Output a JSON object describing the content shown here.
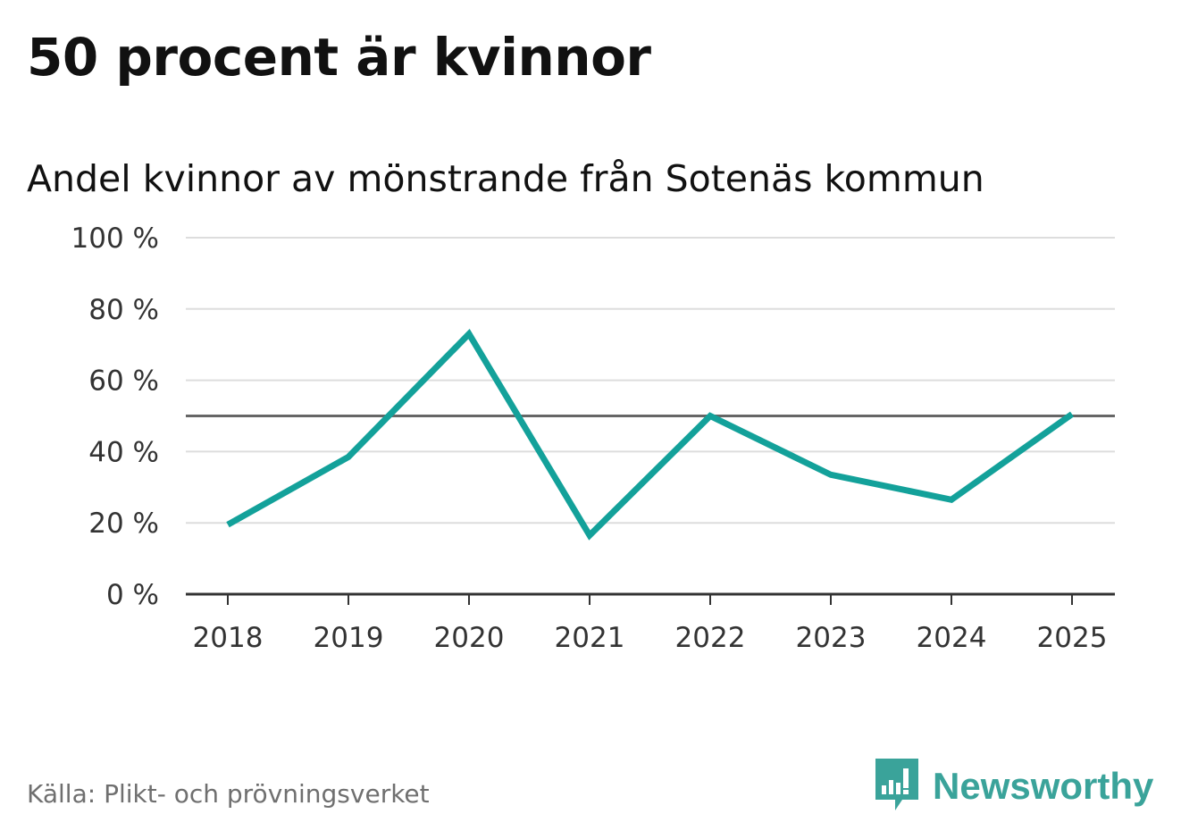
{
  "title": "50 procent är kvinnor",
  "subtitle": "Andel kvinnor av mönstrande från Sotenäs kommun",
  "source": "Källa: Plikt- och prövningsverket",
  "brand": {
    "name": "Newsworthy",
    "icon": "newsworthy-logo-icon",
    "color": "#3aa39a"
  },
  "colors": {
    "line": "#13a19a",
    "reference": "#666666",
    "grid": "#dddddd",
    "axis": "#333333"
  },
  "chart_data": {
    "type": "line",
    "title": "50 procent är kvinnor",
    "subtitle": "Andel kvinnor av mönstrande från Sotenäs kommun",
    "xlabel": "",
    "ylabel": "",
    "categories": [
      "2018",
      "2019",
      "2020",
      "2021",
      "2022",
      "2023",
      "2024",
      "2025"
    ],
    "series": [
      {
        "name": "Andel kvinnor",
        "values": [
          19.5,
          38.5,
          73,
          16.5,
          50,
          33.5,
          26.5,
          50.5
        ]
      }
    ],
    "reference_line": 50,
    "ylim": [
      0,
      100
    ],
    "yticks": [
      0,
      20,
      40,
      60,
      80,
      100
    ],
    "ytick_labels": [
      "0 %",
      "20 %",
      "40 %",
      "60 %",
      "80 %",
      "100 %"
    ],
    "grid": true,
    "legend": "none"
  }
}
